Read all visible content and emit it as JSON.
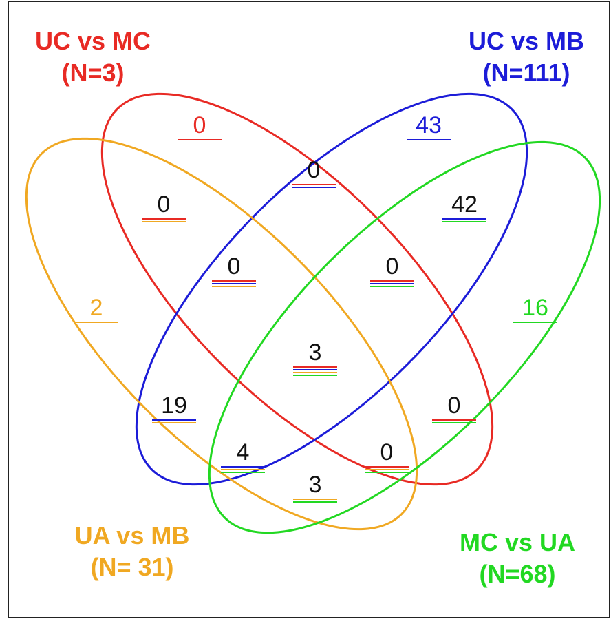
{
  "sets": [
    {
      "name": "UC vs MC",
      "size_label": "(N=3)",
      "color": "#e82a24"
    },
    {
      "name": "UC vs MB",
      "size_label": "(N=111)",
      "color": "#1c1cd8"
    },
    {
      "name": "UA vs MB",
      "size_label": "(N= 31)",
      "color": "#f0a822"
    },
    {
      "name": "MC vs UA",
      "size_label": "(N=68)",
      "color": "#22d822"
    }
  ],
  "regions": [
    {
      "count": "0",
      "sets": [
        0
      ]
    },
    {
      "count": "43",
      "sets": [
        1
      ]
    },
    {
      "count": "0",
      "sets": [
        0,
        1
      ]
    },
    {
      "count": "0",
      "sets": [
        0,
        2
      ]
    },
    {
      "count": "42",
      "sets": [
        1,
        3
      ]
    },
    {
      "count": "2",
      "sets": [
        2
      ]
    },
    {
      "count": "16",
      "sets": [
        3
      ]
    },
    {
      "count": "0",
      "sets": [
        0,
        1,
        2
      ]
    },
    {
      "count": "0",
      "sets": [
        0,
        1,
        3
      ]
    },
    {
      "count": "3",
      "sets": [
        0,
        1,
        2,
        3
      ]
    },
    {
      "count": "19",
      "sets": [
        1,
        2
      ]
    },
    {
      "count": "0",
      "sets": [
        0,
        3
      ]
    },
    {
      "count": "4",
      "sets": [
        1,
        2,
        3
      ]
    },
    {
      "count": "0",
      "sets": [
        0,
        2,
        3
      ]
    },
    {
      "count": "3",
      "sets": [
        2,
        3
      ]
    }
  ]
}
